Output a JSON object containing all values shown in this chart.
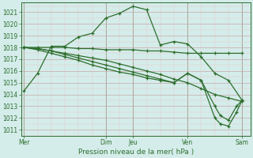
{
  "bg_color": "#d4ecea",
  "grid_major_color": "#c8a8a8",
  "grid_minor_color": "#e8c8c8",
  "line_color": "#2d6e2d",
  "ylabel_text": "Pression niveau de la mer( hPa )",
  "xtick_labels": [
    "Mer",
    "",
    "Dim",
    "Jeu",
    "",
    "Ven",
    "",
    "Sam"
  ],
  "xtick_positions": [
    0,
    1.5,
    3,
    4,
    5,
    6,
    7,
    8
  ],
  "xlim": [
    -0.1,
    8.3
  ],
  "ylim": [
    1010.5,
    1021.8
  ],
  "yticks": [
    1011,
    1012,
    1013,
    1014,
    1015,
    1016,
    1017,
    1018,
    1019,
    1020,
    1021
  ],
  "line1_x": [
    0,
    0.5,
    1,
    1.5,
    2,
    2.5,
    3,
    3.5,
    4,
    4.5,
    5,
    5.5,
    6,
    6.5,
    7,
    7.5,
    8
  ],
  "line1_y": [
    1014.3,
    1015.8,
    1018.1,
    1018.1,
    1018.9,
    1019.2,
    1020.5,
    1020.9,
    1021.5,
    1021.2,
    1018.2,
    1018.5,
    1018.3,
    1017.2,
    1015.8,
    1015.2,
    1013.5
  ],
  "line2_x": [
    0,
    0.5,
    1,
    1.5,
    2,
    2.5,
    3,
    3.5,
    4,
    4.5,
    5,
    5.5,
    6,
    6.5,
    7,
    7.5,
    8
  ],
  "line2_y": [
    1018.0,
    1018.0,
    1018.0,
    1018.0,
    1017.9,
    1017.9,
    1017.8,
    1017.8,
    1017.8,
    1017.7,
    1017.7,
    1017.6,
    1017.5,
    1017.5,
    1017.5,
    1017.5,
    1017.5
  ],
  "line3_x": [
    0,
    0.5,
    1,
    1.5,
    2,
    2.5,
    3,
    3.5,
    4,
    4.5,
    5,
    5.5,
    6,
    6.5,
    7,
    7.5,
    8
  ],
  "line3_y": [
    1018.0,
    1017.9,
    1017.7,
    1017.5,
    1017.3,
    1017.1,
    1016.9,
    1016.6,
    1016.3,
    1016.0,
    1015.7,
    1015.3,
    1015.0,
    1014.5,
    1014.0,
    1013.7,
    1013.4
  ],
  "line4_x": [
    0,
    0.5,
    1,
    1.5,
    2,
    2.5,
    3,
    3.5,
    4,
    4.5,
    5,
    5.5,
    6,
    6.5,
    7,
    7.2,
    7.5,
    7.8,
    8
  ],
  "line4_y": [
    1018.0,
    1017.9,
    1017.7,
    1017.4,
    1017.1,
    1016.8,
    1016.5,
    1016.2,
    1015.9,
    1015.6,
    1015.3,
    1015.0,
    1015.8,
    1015.2,
    1012.0,
    1011.5,
    1011.3,
    1012.5,
    1013.5
  ],
  "line5_x": [
    0,
    0.5,
    1,
    1.5,
    2,
    2.5,
    3,
    3.5,
    4,
    4.5,
    5,
    5.5,
    6,
    6.5,
    7,
    7.2,
    7.5,
    7.8,
    8
  ],
  "line5_y": [
    1018.0,
    1017.8,
    1017.5,
    1017.2,
    1016.9,
    1016.5,
    1016.2,
    1015.9,
    1015.7,
    1015.4,
    1015.2,
    1015.0,
    1015.8,
    1015.2,
    1013.0,
    1012.2,
    1011.8,
    1013.0,
    1013.5
  ]
}
